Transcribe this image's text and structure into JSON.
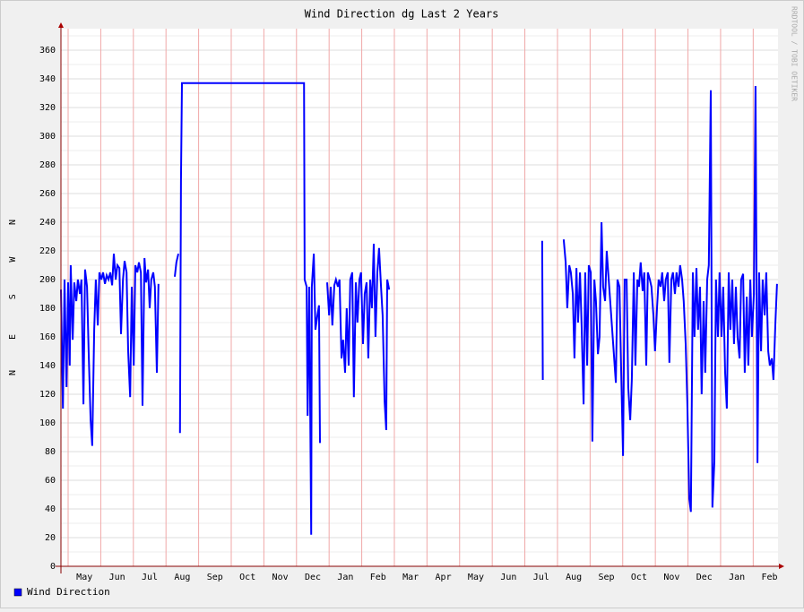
{
  "chart_data": {
    "type": "line",
    "title": "Wind Direction dg Last 2 Years",
    "side_label": "RRDTOOL / TOBI OETIKER",
    "xlim": [
      -0.22,
      21.76
    ],
    "ylim": [
      0,
      375
    ],
    "xticks": [
      {
        "value": 0,
        "label": "May"
      },
      {
        "value": 1,
        "label": "Jun"
      },
      {
        "value": 2,
        "label": "Jul"
      },
      {
        "value": 3,
        "label": "Aug"
      },
      {
        "value": 4,
        "label": "Sep"
      },
      {
        "value": 5,
        "label": "Oct"
      },
      {
        "value": 6,
        "label": "Nov"
      },
      {
        "value": 7,
        "label": "Dec"
      },
      {
        "value": 8,
        "label": "Jan"
      },
      {
        "value": 9,
        "label": "Feb"
      },
      {
        "value": 10,
        "label": "Mar"
      },
      {
        "value": 11,
        "label": "Apr"
      },
      {
        "value": 12,
        "label": "May"
      },
      {
        "value": 13,
        "label": "Jun"
      },
      {
        "value": 14,
        "label": "Jul"
      },
      {
        "value": 15,
        "label": "Aug"
      },
      {
        "value": 16,
        "label": "Sep"
      },
      {
        "value": 17,
        "label": "Oct"
      },
      {
        "value": 18,
        "label": "Nov"
      },
      {
        "value": 19,
        "label": "Dec"
      },
      {
        "value": 20,
        "label": "Jan"
      },
      {
        "value": 21,
        "label": "Feb"
      }
    ],
    "yticks": [
      0,
      20,
      40,
      60,
      80,
      100,
      120,
      140,
      160,
      180,
      200,
      220,
      240,
      260,
      280,
      300,
      320,
      340,
      360
    ],
    "y_minor_ticks": [
      10,
      30,
      50,
      70,
      90,
      110,
      130,
      150,
      170,
      190,
      210,
      230,
      250,
      270,
      290,
      310,
      330,
      350,
      370
    ],
    "y_annotations": [
      {
        "value": 135,
        "label": "N"
      },
      {
        "value": 160,
        "label": "E"
      },
      {
        "value": 188,
        "label": "S"
      },
      {
        "value": 214,
        "label": "W"
      },
      {
        "value": 240,
        "label": "N"
      }
    ],
    "grid": true,
    "x": [
      -0.22,
      -0.16,
      -0.11,
      -0.05,
      0,
      0.05,
      0.08,
      0.14,
      0.19,
      0.25,
      0.3,
      0.36,
      0.41,
      0.47,
      0.52,
      0.58,
      0.63,
      0.69,
      0.74,
      0.8,
      0.85,
      0.91,
      0.96,
      1.02,
      1.07,
      1.13,
      1.18,
      1.24,
      1.29,
      1.35,
      1.4,
      1.46,
      1.51,
      1.57,
      1.62,
      1.68,
      1.73,
      1.79,
      1.84,
      1.9,
      1.95,
      2.01,
      2.06,
      2.12,
      2.17,
      2.23,
      2.28,
      2.34,
      2.39,
      2.45,
      2.5,
      2.55,
      2.61,
      2.66,
      2.72,
      2.77,
      2.85,
      3.27,
      3.32,
      3.38,
      3.4,
      3.43,
      3.46,
      3.49,
      7.23,
      7.25,
      7.31,
      7.34,
      7.39,
      7.45,
      7.47,
      7.53,
      7.58,
      7.64,
      7.69,
      7.72,
      7.8,
      7.94,
      8.0,
      8.05,
      8.1,
      8.16,
      8.21,
      8.27,
      8.32,
      8.38,
      8.43,
      8.49,
      8.54,
      8.6,
      8.65,
      8.71,
      8.76,
      8.82,
      8.87,
      8.93,
      8.98,
      9.04,
      9.09,
      9.15,
      9.2,
      9.26,
      9.31,
      9.37,
      9.42,
      9.48,
      9.53,
      9.59,
      9.64,
      9.7,
      9.75,
      9.78,
      9.84,
      12,
      14.53,
      14.55,
      15,
      15.19,
      15.25,
      15.3,
      15.36,
      15.41,
      15.47,
      15.52,
      15.58,
      15.63,
      15.69,
      15.74,
      15.8,
      15.85,
      15.91,
      15.96,
      16.02,
      16.07,
      16.13,
      16.18,
      16.24,
      16.29,
      16.35,
      16.4,
      16.46,
      16.51,
      16.79,
      16.84,
      16.9,
      16.95,
      17.01,
      17.06,
      17.12,
      17.17,
      17.23,
      17.28,
      17.34,
      17.39,
      17.45,
      17.5,
      17.55,
      17.61,
      17.66,
      17.72,
      17.77,
      17.83,
      17.88,
      17.94,
      17.99,
      18.05,
      18.1,
      18.16,
      18.21,
      18.27,
      18.32,
      18.38,
      18.43,
      18.49,
      18.54,
      18.6,
      18.65,
      18.71,
      18.76,
      18.82,
      18.87,
      18.93,
      18.98,
      19.04,
      19.09,
      19.15,
      19.2,
      19.26,
      19.31,
      19.37,
      19.42,
      19.48,
      19.53,
      19.59,
      19.64,
      19.7,
      19.75,
      19.81,
      19.86,
      19.92,
      19.97,
      20.03,
      20.08,
      20.14,
      20.19,
      20.25,
      20.3,
      20.36,
      20.41,
      20.47,
      20.52,
      20.58,
      20.63,
      20.69,
      20.74,
      20.8,
      20.85,
      20.91,
      20.96,
      21.02,
      21.07,
      21.13,
      21.18,
      21.24,
      21.29,
      21.35,
      21.4,
      21.46,
      21.51,
      21.57,
      21.62,
      21.68,
      21.73
    ],
    "series": [
      {
        "name": "Wind Direction",
        "color": "#0000ff",
        "values": [
          193,
          110,
          200,
          125,
          198,
          140,
          210,
          158,
          198,
          185,
          200,
          190,
          200,
          113,
          207,
          195,
          150,
          102,
          84,
          165,
          200,
          168,
          205,
          200,
          205,
          197,
          203,
          200,
          205,
          196,
          218,
          200,
          210,
          208,
          162,
          200,
          213,
          205,
          150,
          118,
          195,
          140,
          210,
          205,
          212,
          205,
          112,
          215,
          198,
          207,
          180,
          200,
          205,
          195,
          135,
          197,
          null,
          202,
          212,
          218,
          null,
          93,
          268,
          337,
          337,
          200,
          195,
          105,
          195,
          22,
          195,
          218,
          165,
          175,
          182,
          86,
          null,
          198,
          175,
          195,
          168,
          196,
          200,
          195,
          200,
          145,
          158,
          135,
          180,
          140,
          200,
          205,
          118,
          198,
          170,
          200,
          205,
          155,
          190,
          198,
          145,
          200,
          180,
          225,
          160,
          205,
          222,
          195,
          175,
          115,
          95,
          200,
          193,
          null,
          227,
          130,
          null,
          228,
          212,
          180,
          210,
          205,
          190,
          145,
          208,
          170,
          205,
          168,
          113,
          205,
          140,
          210,
          205,
          87,
          200,
          185,
          148,
          160,
          240,
          195,
          185,
          220,
          128,
          200,
          195,
          140,
          77,
          200,
          200,
          125,
          102,
          130,
          205,
          140,
          200,
          195,
          212,
          192,
          205,
          140,
          205,
          200,
          195,
          175,
          150,
          180,
          200,
          195,
          205,
          185,
          200,
          205,
          142,
          200,
          205,
          190,
          205,
          195,
          210,
          200,
          185,
          155,
          115,
          47,
          38,
          205,
          160,
          208,
          165,
          195,
          120,
          185,
          135,
          200,
          210,
          332,
          41,
          73,
          200,
          160,
          205,
          160,
          195,
          135,
          110,
          205,
          165,
          200,
          155,
          195,
          160,
          145,
          200,
          204,
          135,
          188,
          140,
          200,
          160,
          190,
          335,
          72,
          205,
          150,
          200,
          175,
          205,
          150,
          140,
          145,
          130,
          170,
          197
        ]
      }
    ]
  }
}
